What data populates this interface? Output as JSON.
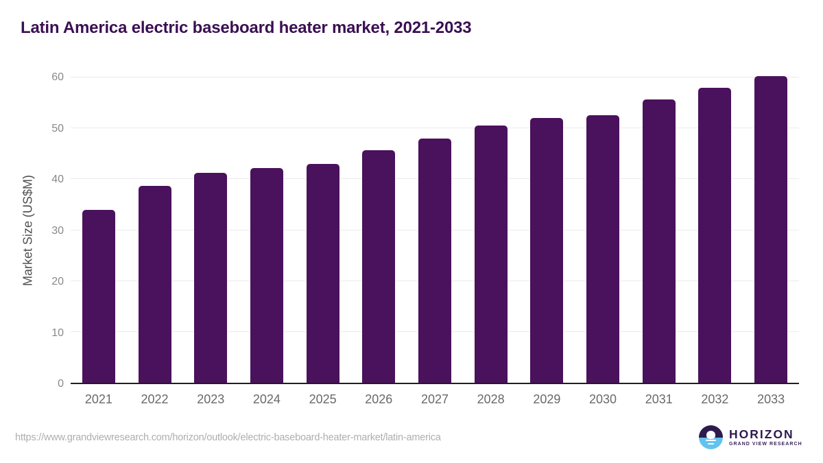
{
  "title": "Latin America electric baseboard heater market, 2021-2033",
  "chart_data": {
    "type": "bar",
    "title": "Latin America electric baseboard heater market, 2021-2033",
    "categories": [
      "2021",
      "2022",
      "2023",
      "2024",
      "2025",
      "2026",
      "2027",
      "2028",
      "2029",
      "2030",
      "2031",
      "2032",
      "2033"
    ],
    "values": [
      34.0,
      38.7,
      41.2,
      42.2,
      43.0,
      45.7,
      48.0,
      50.5,
      52.0,
      52.6,
      55.7,
      58.0,
      60.3
    ],
    "xlabel": "",
    "ylabel": "Market Size (US$M)",
    "ylim": [
      0,
      60
    ],
    "yticks": [
      0,
      10,
      20,
      30,
      40,
      50,
      60
    ],
    "grid": "horizontal",
    "legend": "none",
    "bar_color": "#4A115C"
  },
  "colors": {
    "title": "#3A0F53",
    "bar": "#4A115C",
    "gridline": "#ebebeb",
    "axis_line": "#1f1f1f",
    "logo_purple": "#2F1A4E",
    "logo_blue": "#63C3EE"
  },
  "footer": {
    "source_url": "https://www.grandviewresearch.com/horizon/outlook/electric-baseboard-heater-market/latin-america",
    "logo": {
      "brand": "HORIZON",
      "sub_brand": "GRAND VIEW RESEARCH"
    }
  }
}
